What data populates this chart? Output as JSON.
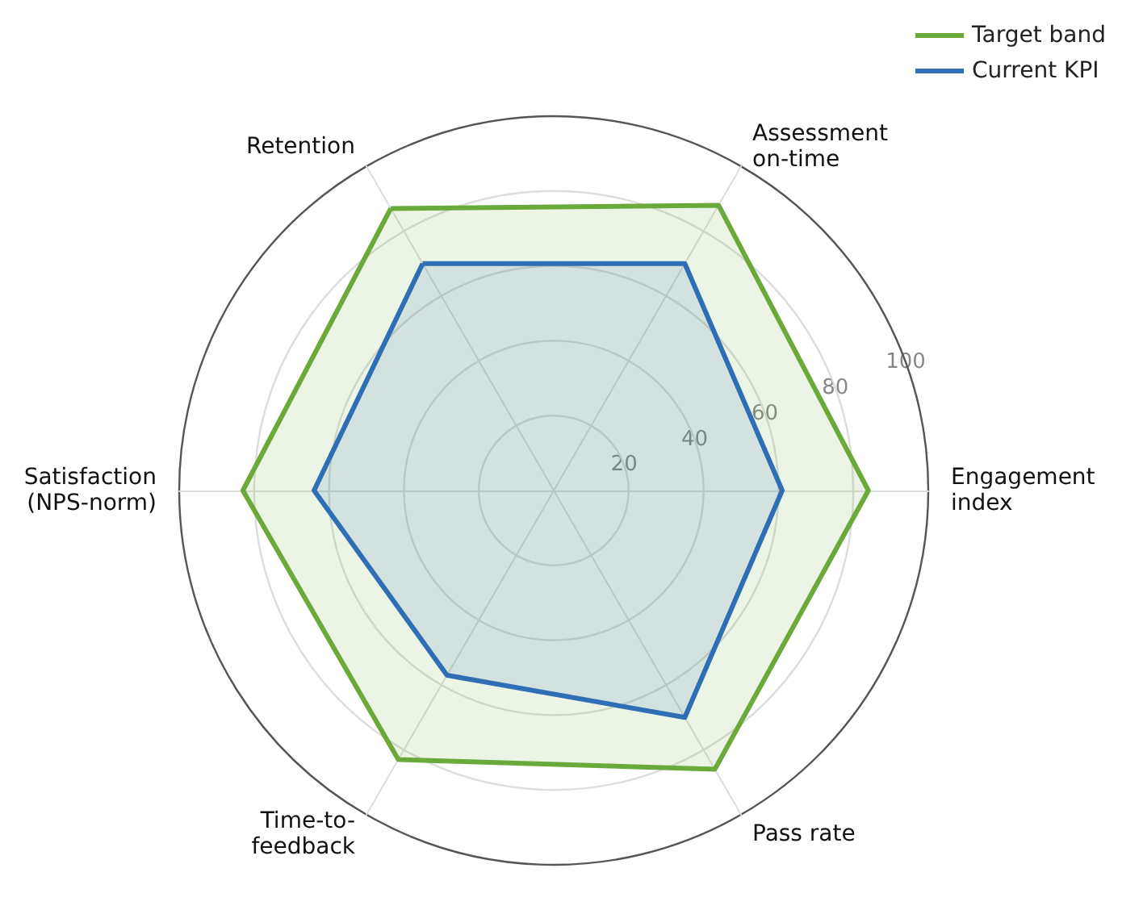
{
  "chart_data": {
    "type": "radar",
    "categories": [
      "Assessment\non-time",
      "Engagement\nindex",
      "Pass rate",
      "Time-to-\nfeedback",
      "Satisfaction\n(NPS-norm)",
      "Retention"
    ],
    "series": [
      {
        "name": "Target band",
        "color": "#6aaa3a",
        "values": [
          88,
          84,
          86,
          83,
          83,
          87
        ]
      },
      {
        "name": "Current KPI",
        "color": "#2e6fb5",
        "values": [
          70,
          61,
          70,
          57,
          64,
          70
        ]
      }
    ],
    "ylim": [
      0,
      100
    ],
    "yticks": [
      20,
      40,
      60,
      80,
      100
    ],
    "grid": true,
    "legend": "top right"
  }
}
